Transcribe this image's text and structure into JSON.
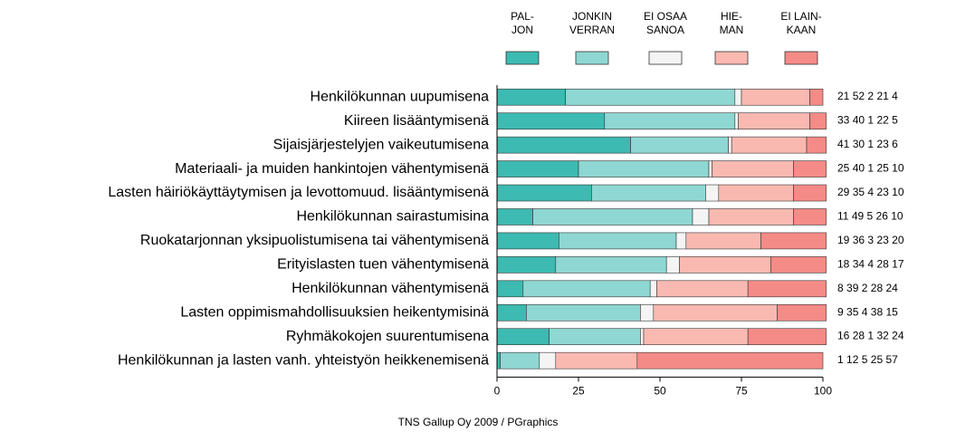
{
  "chart_data": {
    "type": "stacked-bar-horizontal",
    "categories": [
      "Henkilökunnan uupumisena",
      "Kiireen lisääntymisenä",
      "Sijaisjärjestelyjen vaikeutumisena",
      "Materiaali- ja muiden hankintojen vähentymisenä",
      "Lasten häiriökäyttäytymisen ja levottomuud. lisääntymisenä",
      "Henkilökunnan sairastumisina",
      "Ruokatarjonnan yksipuolistumisena tai vähentymisenä",
      "Erityislasten tuen vähentymisenä",
      "Henkilökunnan vähentymisenä",
      "Lasten oppimismahdollisuuksien heikentymisinä",
      "Ryhmäkokojen suurentumisena",
      "Henkilökunnan ja lasten vanh. yhteistyön heikkenemisenä"
    ],
    "series": [
      {
        "name": "PAL-\nJON",
        "color": "#3dbab1",
        "values": [
          21,
          33,
          41,
          25,
          29,
          11,
          19,
          18,
          8,
          9,
          16,
          1
        ]
      },
      {
        "name": "JONKIN\nVERRAN",
        "color": "#8fd7d3",
        "values": [
          52,
          40,
          30,
          40,
          35,
          49,
          36,
          34,
          39,
          35,
          28,
          12
        ]
      },
      {
        "name": "EI OSAA\nSANOA",
        "color": "#f4f4f4",
        "values": [
          2,
          1,
          1,
          1,
          4,
          5,
          3,
          4,
          2,
          4,
          1,
          5
        ]
      },
      {
        "name": "HIE-\nMAN",
        "color": "#f9b9b1",
        "values": [
          21,
          22,
          23,
          25,
          23,
          26,
          23,
          28,
          28,
          38,
          32,
          25
        ]
      },
      {
        "name": "EI LAIN-\nKAAN",
        "color": "#f58b87",
        "values": [
          4,
          5,
          6,
          10,
          10,
          10,
          20,
          17,
          24,
          15,
          24,
          57
        ]
      }
    ],
    "xlim": [
      0,
      100
    ],
    "xticks": [
      0,
      25,
      50,
      75,
      100
    ],
    "footer": "TNS Gallup Oy 2009 / PGraphics"
  }
}
